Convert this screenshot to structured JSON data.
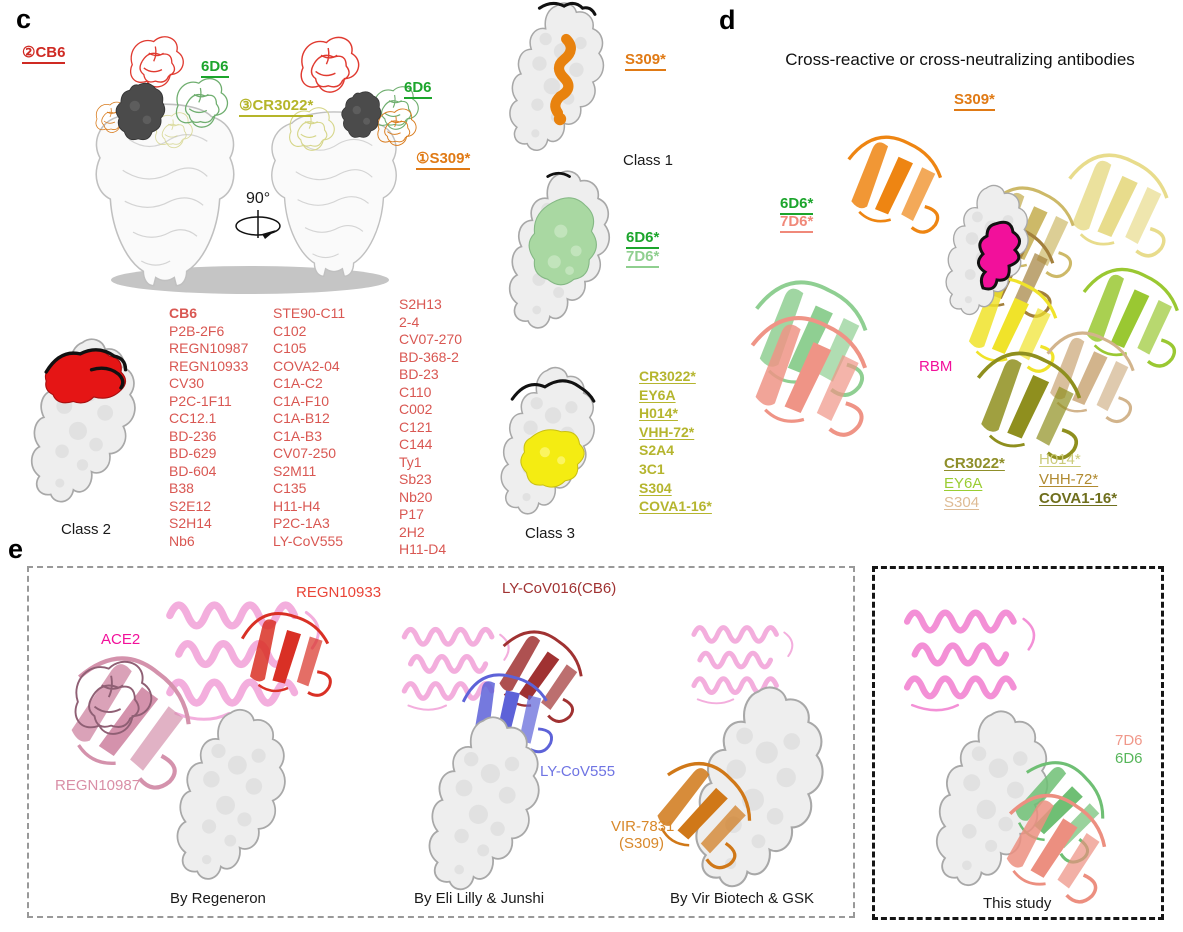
{
  "colors": {
    "list_red": "#d95752",
    "label_red": "#cf2a23",
    "green": "#1ca52c",
    "light_green": "#8fcf8f",
    "olive": "#b5b52a",
    "orange": "#e07a15",
    "magenta_rbm": "#f2109b",
    "salmon_7d6": "#f0897a",
    "regn10933_red": "#ea4437",
    "regn10987_pink": "#d98fa6",
    "ly_cov016_darkred": "#a03232",
    "ly_cov555_blue": "#6f74e3",
    "vir7831_orange": "#d8882a",
    "study_7d6_salmon": "#f0988a",
    "study_6d6_green": "#57b65b"
  },
  "panel_c": {
    "letter": "c",
    "labels": {
      "cb6": "②CB6",
      "d6_left": "6D6",
      "cr3022": "③CR3022*",
      "d6_right": "6D6",
      "s309": "①S309*",
      "rotation": "90°"
    },
    "red_antibodies": {
      "col1": [
        {
          "label": "CB6",
          "bold": true
        },
        "P2B-2F6",
        "REGN10987",
        "REGN10933",
        "CV30",
        "P2C-1F11",
        "CC12.1",
        "BD-236",
        "BD-629",
        "BD-604",
        "B38",
        "S2E12",
        "S2H14",
        "Nb6"
      ],
      "col2": [
        "STE90-C11",
        "C102",
        "C105",
        "COVA2-04",
        "C1A-C2",
        "C1A-F10",
        "C1A-B12",
        "C1A-B3",
        "CV07-250",
        "S2M11",
        "C135",
        "H11-H4",
        "P2C-1A3",
        "LY-CoV555"
      ],
      "col3": [
        "S2H13",
        "2-4",
        "CV07-270",
        "BD-368-2",
        "BD-23",
        "C110",
        "C002",
        "C121",
        "C144",
        "Ty1",
        "Sb23",
        "Nb20",
        "P17",
        "2H2",
        "H11-D4"
      ]
    },
    "class1": {
      "antibody": "S309*",
      "label": "Class 1"
    },
    "green_epitope": {
      "a": "6D6*",
      "b": "7D6*"
    },
    "class2": {
      "label": "Class 2"
    },
    "class3": {
      "label": "Class 3",
      "antibodies": [
        {
          "label": "CR3022*",
          "bold": true,
          "underline": true
        },
        {
          "label": "EY6A",
          "underline": true
        },
        {
          "label": "H014*",
          "underline": true
        },
        {
          "label": "VHH-72*",
          "underline": true
        },
        {
          "label": "S2A4"
        },
        {
          "label": "3C1"
        },
        {
          "label": "S304",
          "underline": true
        },
        {
          "label": "COVA1-16*",
          "underline": true
        }
      ]
    }
  },
  "panel_d": {
    "letter": "d",
    "title": "Cross-reactive or cross-neutralizing antibodies",
    "labels": {
      "s309": "S309*",
      "d6": "6D6*",
      "d7": "7D6*",
      "rbm": "RBM"
    },
    "list_left": [
      {
        "label": "CR3022*",
        "bold": true,
        "underline": true,
        "color": "#8f8f2a"
      },
      {
        "label": "EY6A",
        "underline": true,
        "color": "#9acd32"
      },
      {
        "label": "S304",
        "underline": true,
        "color": "#debb94"
      }
    ],
    "list_right": [
      {
        "label": "H014*",
        "underline": true,
        "color": "#cbcb7a"
      },
      {
        "label": "VHH-72*",
        "underline": true,
        "color": "#b08a30"
      },
      {
        "label": "COVA1-16*",
        "bold": true,
        "underline": true,
        "color": "#6f6f1d"
      }
    ]
  },
  "panel_e": {
    "letter": "e",
    "regeneron": {
      "ace2": "ACE2",
      "ab_top": "REGN10933",
      "ab_left": "REGN10987",
      "caption": "By Regeneron"
    },
    "lilly": {
      "ab_top": "LY-CoV016(CB6)",
      "ab_mid": "LY-CoV555",
      "caption": "By Eli Lilly & Junshi"
    },
    "vir": {
      "ab_line1": "VIR-7831",
      "ab_line2": "(S309)",
      "caption": "By Vir Biotech & GSK"
    },
    "this_study": {
      "ab1": "7D6",
      "ab2": "6D6",
      "caption": "This study"
    }
  }
}
